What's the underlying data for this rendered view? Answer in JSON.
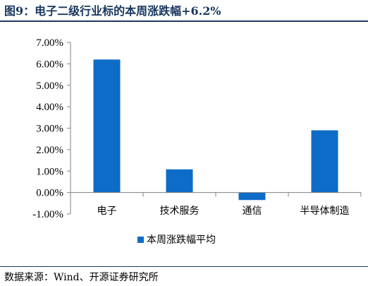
{
  "title": "图9：电子二级行业标的本周涨跌幅+6.2%",
  "source": "数据来源：Wind、开源证券研究所",
  "colors": {
    "bar": "#0d6cc7",
    "rule": "#1f3864",
    "axis": "#808080"
  },
  "chart_data": {
    "type": "bar",
    "categories": [
      "电子",
      "技术服务",
      "通信",
      "半导体制造"
    ],
    "series": [
      {
        "name": "本周涨跌幅平均",
        "values": [
          6.2,
          1.08,
          -0.35,
          2.9
        ]
      }
    ],
    "ylim": [
      -1.0,
      7.0
    ],
    "yticks": [
      -1,
      0,
      1,
      2,
      3,
      4,
      5,
      6,
      7
    ],
    "ytick_labels": [
      "-1.00%",
      "0.00%",
      "1.00%",
      "2.00%",
      "3.00%",
      "4.00%",
      "5.00%",
      "6.00%",
      "7.00%"
    ],
    "legend_position": "bottom-center",
    "grid": false
  }
}
